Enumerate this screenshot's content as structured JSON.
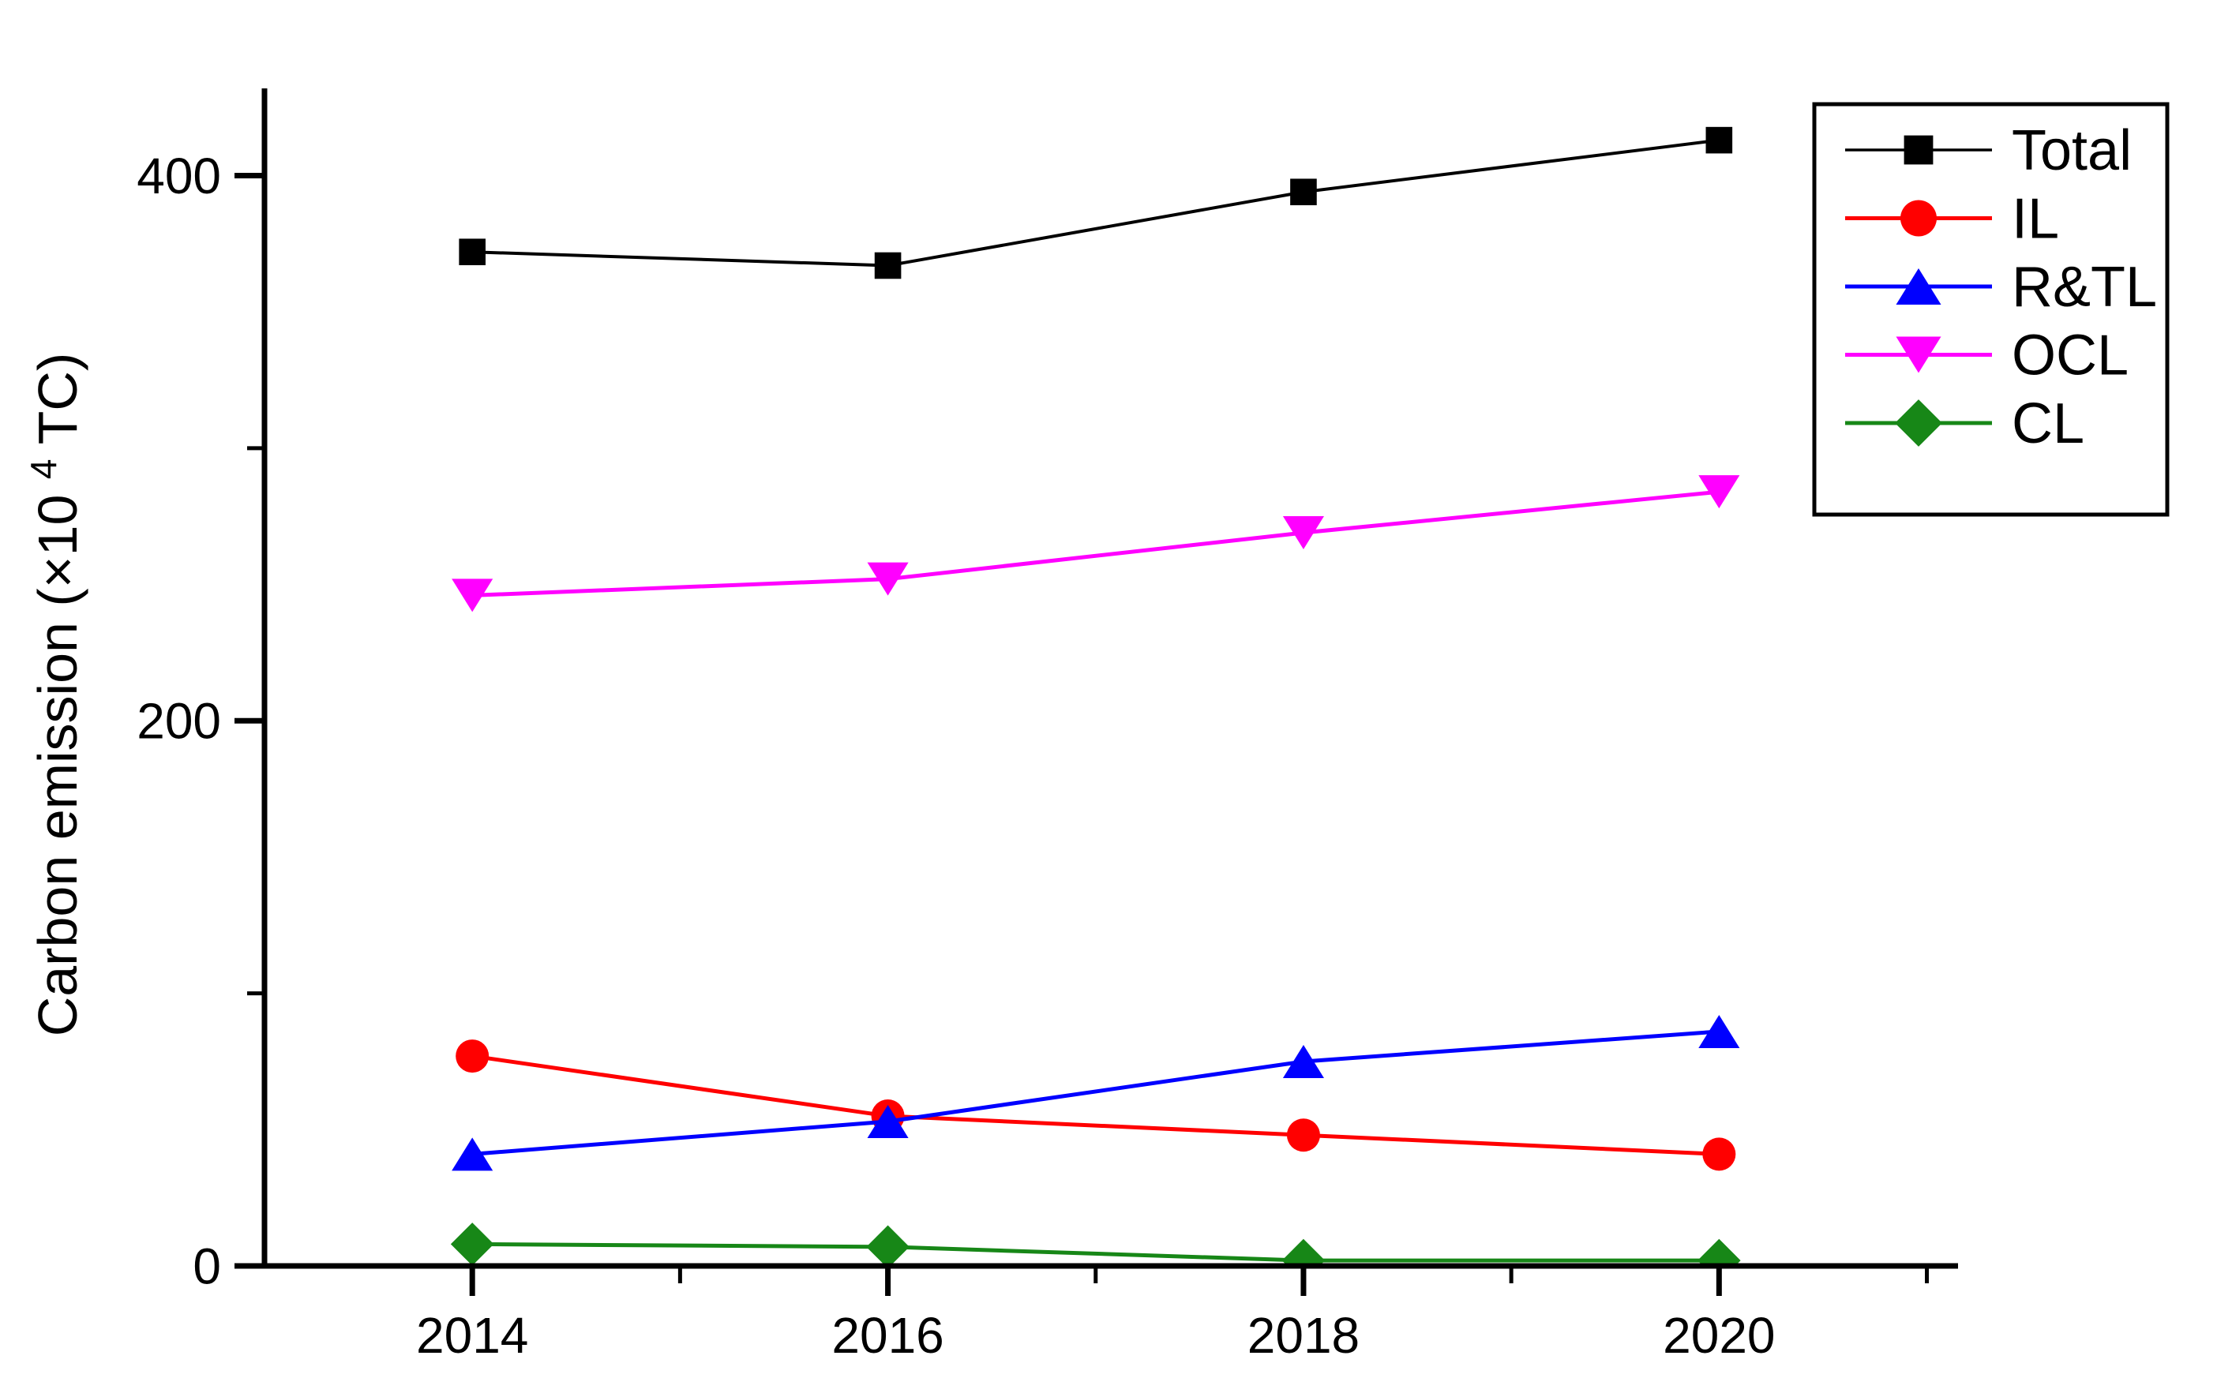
{
  "chart_data": {
    "type": "line",
    "title": "",
    "xlabel": "",
    "ylabel": "Carbon emission (×10⁴ TC)",
    "ylabel_prefix": "Carbon emission (×10",
    "ylabel_superscript": "4",
    "ylabel_suffix": " TC)",
    "x": [
      2014,
      2016,
      2018,
      2020
    ],
    "x_tick_labels": [
      "2014",
      "2016",
      "2018",
      "2020"
    ],
    "x_minor_ticks": [
      2015,
      2017,
      2019,
      2021
    ],
    "xlim": [
      2013,
      2021.15
    ],
    "y_major_tick_values": [
      0,
      200,
      400
    ],
    "y_tick_labels": [
      "0",
      "200",
      "400"
    ],
    "y_minor_ticks": [
      100,
      300
    ],
    "ylim": [
      0,
      432
    ],
    "grid": false,
    "legend_position": "top-right",
    "axis_color": "#000000",
    "background_color": "#ffffff",
    "series": [
      {
        "name": "Total",
        "color": "#000000",
        "marker": "square",
        "values": [
          372,
          367,
          394,
          413
        ]
      },
      {
        "name": "IL",
        "color": "#ff0000",
        "marker": "circle",
        "values": [
          77,
          55,
          48,
          41
        ]
      },
      {
        "name": "R&TL",
        "color": "#0000ff",
        "marker": "triangle-up",
        "values": [
          41,
          53,
          75,
          86
        ]
      },
      {
        "name": "OCL",
        "color": "#ff00ff",
        "marker": "triangle-down",
        "values": [
          246,
          252,
          269,
          284
        ]
      },
      {
        "name": "CL",
        "color": "#178717",
        "marker": "diamond",
        "values": [
          8,
          7,
          2,
          2
        ]
      }
    ]
  }
}
